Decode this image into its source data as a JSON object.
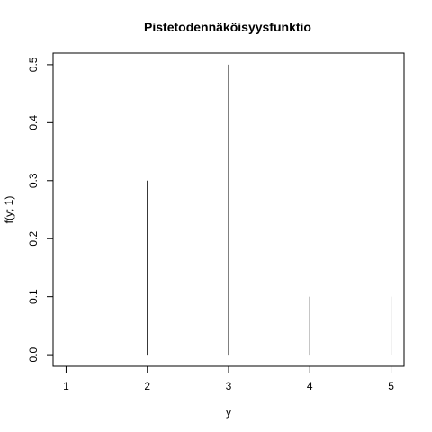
{
  "chart_data": {
    "type": "bar",
    "title": "Pistetodennäköisyysfunktio",
    "xlabel": "y",
    "ylabel": "f(y; 1)",
    "x": [
      1,
      2,
      3,
      4,
      5
    ],
    "values": [
      0.0,
      0.3,
      0.5,
      0.1,
      0.1
    ],
    "xticks": [
      "1",
      "2",
      "3",
      "4",
      "5"
    ],
    "yticks": [
      "0.0",
      "0.1",
      "0.2",
      "0.3",
      "0.4",
      "0.5"
    ],
    "xlim": [
      0.84,
      5.16
    ],
    "ylim": [
      -0.02,
      0.52
    ],
    "grid": false,
    "bar_color": "#000000"
  }
}
